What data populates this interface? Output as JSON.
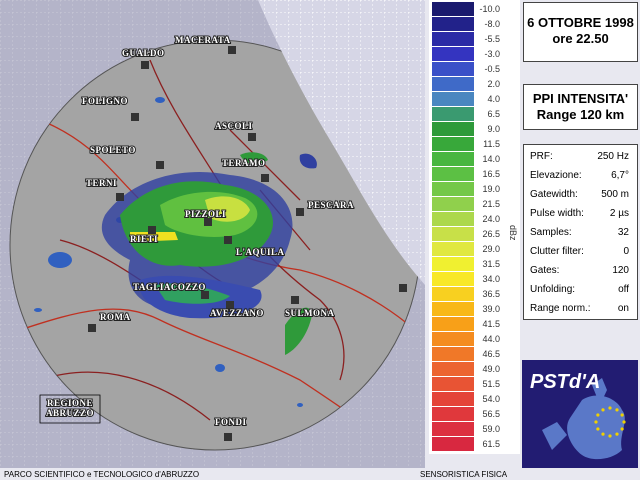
{
  "header": {
    "date": "6 OTTOBRE 1998",
    "time": "ore 22.50"
  },
  "product": {
    "title": "PPI INTENSITA'",
    "range": "Range 120 km"
  },
  "parameters": [
    {
      "label": "PRF:",
      "value": "250 Hz"
    },
    {
      "label": "Elevazione:",
      "value": "6,7°"
    },
    {
      "label": "Gatewidth:",
      "value": "500 m"
    },
    {
      "label": "Pulse width:",
      "value": "2 µs"
    },
    {
      "label": "Samples:",
      "value": "32"
    },
    {
      "label": "Clutter filter:",
      "value": "0"
    },
    {
      "label": "Gates:",
      "value": "120"
    },
    {
      "label": "Unfolding:",
      "value": "off"
    },
    {
      "label": "Range norm.:",
      "value": "on"
    }
  ],
  "scale": {
    "unit": "dBz",
    "labels": [
      "-10.0",
      "-8.0",
      "-5.5",
      "-3.0",
      "-0.5",
      "2.0",
      "4.0",
      "6.5",
      "9.0",
      "11.5",
      "14.0",
      "16.5",
      "19.0",
      "21.5",
      "24.0",
      "26.5",
      "29.0",
      "31.5",
      "34.0",
      "36.5",
      "39.0",
      "41.5",
      "44.0",
      "46.5",
      "49.0",
      "51.5",
      "54.0",
      "56.5",
      "59.0",
      "61.5"
    ]
  },
  "map": {
    "places": [
      "GUALDO",
      "MACERATA",
      "FOLIGNO",
      "ASCOLI",
      "SPOLETO",
      "TERNI",
      "TERAMO",
      "PESCARA",
      "PIZZOLI",
      "RIETI",
      "L'AQUILA",
      "TAGLIACOZZO",
      "AVEZZANO",
      "SULMONA",
      "ROMA",
      "FONDI"
    ],
    "region": [
      "REGIONE",
      "ABRUZZO"
    ]
  },
  "footer": {
    "left": "PARCO SCIENTIFICO e TECNOLOGICO d'ABRUZZO",
    "right": "SENSORISTICA FISICA"
  },
  "logo": {
    "text": "PSTd'A"
  }
}
